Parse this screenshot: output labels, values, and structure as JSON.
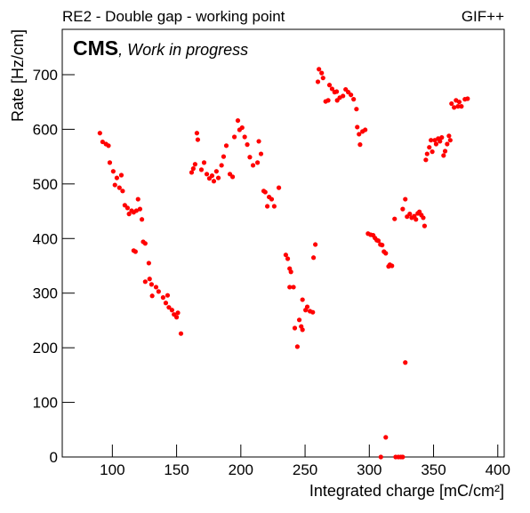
{
  "chart_data": {
    "type": "scatter",
    "title": "RE2 - Double gap - working point",
    "title_right": "GIF++",
    "label_bold": "CMS",
    "label_italic": ", Work in progress",
    "xlabel": "Integrated charge [mC/cm²]",
    "ylabel": "Rate [Hz/cm]",
    "color": "#ff0000",
    "xlim": [
      61,
      405
    ],
    "ylim": [
      0,
      783
    ],
    "xticks": [
      100,
      150,
      200,
      250,
      300,
      350,
      400
    ],
    "yticks": [
      0,
      100,
      200,
      300,
      400,
      500,
      600,
      700
    ],
    "x": [
      90.3,
      92.4,
      95,
      97,
      98,
      100.7,
      102,
      103.5,
      107,
      105.5,
      108,
      109.7,
      111.8,
      113,
      115,
      116.6,
      118.7,
      120,
      121.5,
      123,
      116.6,
      118,
      124,
      125.6,
      125.6,
      128.4,
      129,
      130.5,
      131,
      134,
      136,
      139.5,
      143,
      141.6,
      144,
      146.4,
      148,
      150,
      151,
      153.4,
      161.7,
      163,
      164.4,
      165.8,
      166.5,
      169.3,
      171.4,
      173.5,
      175.5,
      177.6,
      179,
      181,
      182.5,
      185,
      186.6,
      188.7,
      191.5,
      193.6,
      195,
      197.7,
      199,
      201,
      203,
      205,
      207,
      209.5,
      213,
      214,
      215.7,
      217.8,
      219,
      220.6,
      222,
      224,
      226,
      229.6,
      235,
      236.5,
      238,
      239,
      238,
      241,
      242,
      244,
      245.5,
      247,
      248,
      248,
      250.4,
      251.7,
      253.8,
      256,
      256.6,
      258,
      260,
      260.8,
      262.9,
      264,
      266,
      268,
      269,
      271,
      273,
      274.6,
      275,
      277,
      279.5,
      281.6,
      283.6,
      285.7,
      287.8,
      290,
      290.6,
      292,
      292.8,
      294.7,
      296.8,
      299,
      301,
      303,
      304.4,
      305.8,
      307,
      308.6,
      310,
      311.4,
      312.8,
      315,
      316,
      317.6,
      319.7,
      309,
      312.8,
      320.5,
      322.6,
      324.5,
      326,
      328,
      326,
      328,
      329.4,
      331.5,
      333,
      335,
      336.3,
      337.7,
      339,
      340.5,
      342,
      343,
      344,
      345,
      346.7,
      348,
      349,
      351,
      352,
      353.6,
      355,
      356.4,
      357.8,
      359,
      360.6,
      362,
      363,
      364,
      366,
      367.5,
      369,
      370,
      371.7,
      374.4,
      376.5
    ],
    "y": [
      593,
      577,
      573,
      570,
      539,
      523,
      498,
      511,
      516,
      493,
      487,
      461,
      456,
      445,
      451,
      448,
      451,
      472,
      454,
      435,
      378,
      376,
      394,
      391,
      321,
      355,
      326,
      316,
      295,
      311,
      303,
      292,
      296,
      282,
      274,
      269,
      261,
      256,
      264,
      226,
      521,
      528,
      536,
      593,
      581,
      526,
      539,
      518,
      510,
      515,
      505,
      523,
      511,
      534,
      550,
      570,
      518,
      513,
      586,
      616,
      599,
      603,
      586,
      572,
      549,
      534,
      539,
      578,
      555,
      487,
      485,
      459,
      476,
      472,
      459,
      493,
      370,
      363,
      345,
      339,
      311,
      311,
      236,
      202,
      251,
      239,
      288,
      233,
      269,
      275,
      267,
      265,
      365,
      389,
      687,
      710,
      703,
      694,
      651,
      653,
      681,
      674,
      668,
      669,
      653,
      658,
      661,
      673,
      668,
      663,
      655,
      637,
      604,
      591,
      572,
      596,
      599,
      409,
      407,
      406,
      401,
      397,
      396,
      389,
      388,
      376,
      373,
      349,
      352,
      350,
      436,
      0,
      36,
      0,
      0,
      0,
      0,
      173,
      454,
      472,
      440,
      445,
      438,
      441,
      435,
      446,
      449,
      443,
      438,
      423,
      544,
      555,
      567,
      580,
      559,
      580,
      573,
      583,
      578,
      585,
      552,
      560,
      573,
      588,
      580,
      647,
      640,
      653,
      642,
      650,
      642,
      655,
      656
    ]
  }
}
